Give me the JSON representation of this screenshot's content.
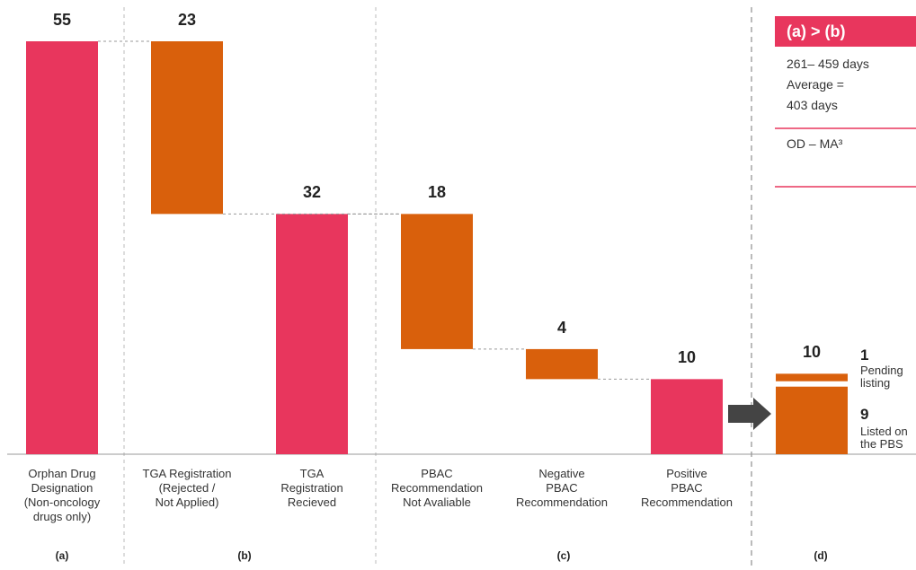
{
  "chart_data": {
    "type": "waterfall",
    "categories": [
      "Orphan Drug\nDesignation\n(Non-oncology\ndrugs only)",
      "TGA Registration\n(Rejected /\nNot Applied)",
      "TGA\nRegistration\nRecieved",
      "PBAC\nRecommendation\nNot Avaliable",
      "Negative\nPBAC\nRecommendation",
      "Positive\nPBAC\nRecommendation",
      null
    ],
    "values": [
      55,
      23,
      32,
      18,
      4,
      10,
      10
    ],
    "kinds": [
      "total",
      "decrease",
      "total",
      "decrease",
      "decrease",
      "total",
      "total"
    ],
    "colors": [
      "#e8365d",
      "#d9600c",
      "#e8365d",
      "#d9600c",
      "#d9600c",
      "#e8365d",
      "#d9600c"
    ],
    "breakdown": [
      {
        "value": 9,
        "label": "Listed on\nthe PBS"
      },
      {
        "value": 1,
        "label": "Pending\nlisting"
      }
    ],
    "groups": [
      "(a)",
      "(b)",
      "(c)",
      "(d)"
    ],
    "ylim": [
      0,
      55
    ],
    "callout": {
      "title": "(a) > (b)",
      "text": "261– 459 days\nAverage =\n403 days",
      "footer": "OD – MA³"
    }
  }
}
